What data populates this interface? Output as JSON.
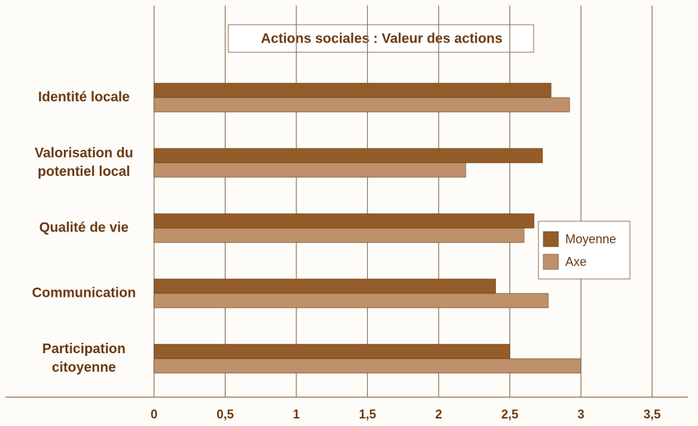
{
  "chart_data": {
    "type": "barh",
    "title": "Actions sociales : Valeur des actions",
    "categories": [
      "Identité locale",
      "Valorisation du potentiel local",
      "Qualité de vie",
      "Communication",
      "Participation citoyenne"
    ],
    "series": [
      {
        "name": "Moyenne",
        "color": "#935c28",
        "values": [
          2.79,
          2.73,
          2.67,
          2.4,
          2.5
        ]
      },
      {
        "name": "Axe",
        "color": "#bf916a",
        "values": [
          2.92,
          2.19,
          2.6,
          2.77,
          3.0
        ]
      }
    ],
    "xlim": [
      0,
      3.75
    ],
    "xticks": [
      0,
      {
        "value": 0.5,
        "label": "0,5"
      },
      1,
      {
        "value": 1.5,
        "label": "1,5"
      },
      2,
      {
        "value": 2.5,
        "label": "2,5"
      },
      3,
      {
        "value": 3.5,
        "label": "3,5"
      }
    ],
    "grid": true
  }
}
